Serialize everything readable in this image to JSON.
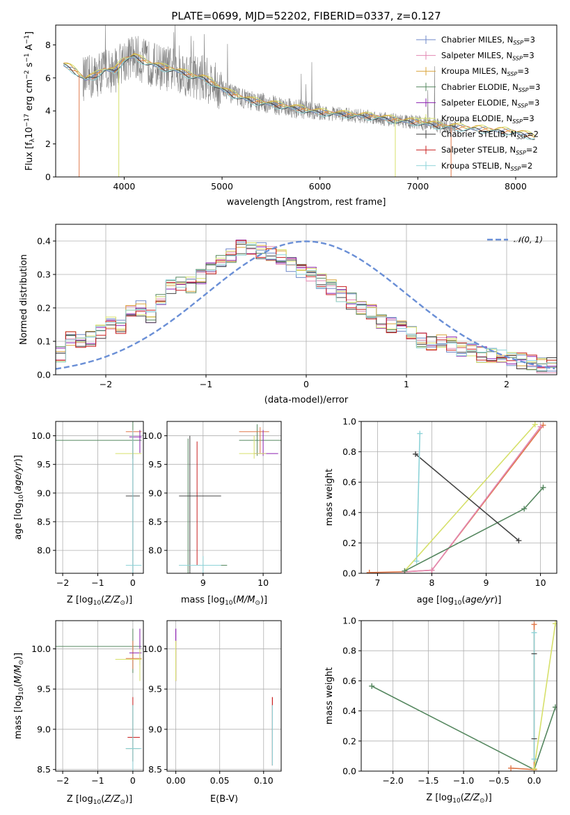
{
  "title": "PLATE=0699, MJD=52202, FIBERID=0337, z=0.127",
  "colors": {
    "chabrier_miles": "#6e87c8",
    "salpeter_miles": "#e287b2",
    "kroupa_miles": "#d9a43a",
    "chabrier_elodie": "#55875f",
    "salpeter_elodie": "#8a1fb0",
    "kroupa_elodie": "#d6e06a",
    "chabrier_stelib": "#444444",
    "salpeter_stelib": "#c81e1e",
    "kroupa_stelib": "#8ed3d8",
    "spectrum": "#808080",
    "normal": "#6a8fd6",
    "orange_fit": "#e0784a"
  },
  "chart_data": [
    {
      "id": "spectrum",
      "type": "line",
      "xlabel": "wavelength [Angstrom, rest frame]",
      "ylabel": "Flux [fλ10⁻¹⁷ erg cm⁻² s⁻¹ A⁻¹]",
      "xlim": [
        3300,
        8420
      ],
      "ylim": [
        0,
        9.2
      ],
      "xticks": [
        4000,
        5000,
        6000,
        7000,
        8000
      ],
      "yticks": [
        0,
        2,
        4,
        6,
        8
      ],
      "legend_position": "top-right",
      "legend": [
        {
          "base": "Chabrier MILES, N",
          "sub": "SSP",
          "tail": "=3",
          "color_key": "chabrier_miles"
        },
        {
          "base": "Salpeter MILES, N",
          "sub": "SSP",
          "tail": "=3",
          "color_key": "salpeter_miles"
        },
        {
          "base": "Kroupa MILES, N",
          "sub": "SSP",
          "tail": "=3",
          "color_key": "kroupa_miles"
        },
        {
          "base": "Chabrier ELODIE, N",
          "sub": "SSP",
          "tail": "=3",
          "color_key": "chabrier_elodie"
        },
        {
          "base": "Salpeter ELODIE, N",
          "sub": "SSP",
          "tail": "=3",
          "color_key": "salpeter_elodie"
        },
        {
          "base": "Kroupa ELODIE, N",
          "sub": "SSP",
          "tail": "=3",
          "color_key": "kroupa_elodie"
        },
        {
          "base": "Chabrier STELIB, N",
          "sub": "SSP",
          "tail": "=2",
          "color_key": "chabrier_stelib"
        },
        {
          "base": "Salpeter STELIB, N",
          "sub": "SSP",
          "tail": "=2",
          "color_key": "salpeter_stelib"
        },
        {
          "base": "Kroupa STELIB, N",
          "sub": "SSP",
          "tail": "=2",
          "color_key": "kroupa_stelib"
        }
      ],
      "model_continuum": {
        "x": [
          3380,
          3450,
          3520,
          3600,
          3700,
          3800,
          3900,
          4000,
          4100,
          4200,
          4300,
          4400,
          4500,
          4600,
          4700,
          4800,
          4900,
          5000,
          5100,
          5200,
          5300,
          5400,
          5500,
          5600,
          5700,
          5800,
          5900,
          6000,
          6200,
          6400,
          6600,
          6800,
          7000,
          7200,
          7400,
          7600,
          7800,
          8000,
          8200
        ],
        "y": [
          6.8,
          6.6,
          6.3,
          5.9,
          6.1,
          6.5,
          6.4,
          7.1,
          7.3,
          7.0,
          6.8,
          6.6,
          6.5,
          6.3,
          6.1,
          6.0,
          5.7,
          5.3,
          5.0,
          4.8,
          4.6,
          4.5,
          4.4,
          4.3,
          4.2,
          4.1,
          4.0,
          3.9,
          3.8,
          3.7,
          3.6,
          3.4,
          3.3,
          3.1,
          3.0,
          2.9,
          2.8,
          2.7,
          2.4
        ]
      },
      "observed_range": [
        3580,
        7410
      ]
    },
    {
      "id": "residuals",
      "type": "line",
      "xlabel": "(data-model)/error",
      "ylabel": "Normed distribution",
      "xlim": [
        -2.5,
        2.5
      ],
      "ylim": [
        0,
        0.45
      ],
      "xticks": [
        -2,
        -1,
        0,
        1,
        2
      ],
      "yticks": [
        0.0,
        0.1,
        0.2,
        0.3,
        0.4
      ],
      "legend_position": "top-right",
      "legend": [
        {
          "label": "𝒩(0, 1)",
          "color_key": "normal"
        }
      ],
      "bin_edges": [
        -2.5,
        -2.4,
        -2.3,
        -2.2,
        -2.1,
        -2.0,
        -1.9,
        -1.8,
        -1.7,
        -1.6,
        -1.5,
        -1.4,
        -1.3,
        -1.2,
        -1.1,
        -1.0,
        -0.9,
        -0.8,
        -0.7,
        -0.6,
        -0.5,
        -0.4,
        -0.3,
        -0.2,
        -0.1,
        0.0,
        0.1,
        0.2,
        0.3,
        0.4,
        0.5,
        0.6,
        0.7,
        0.8,
        0.9,
        1.0,
        1.1,
        1.2,
        1.3,
        1.4,
        1.5,
        1.6,
        1.7,
        1.8,
        1.9,
        2.0,
        2.1,
        2.2,
        2.3,
        2.4,
        2.5
      ],
      "histogram_mean": [
        0.06,
        0.11,
        0.1,
        0.11,
        0.13,
        0.15,
        0.14,
        0.19,
        0.2,
        0.18,
        0.23,
        0.26,
        0.27,
        0.27,
        0.29,
        0.31,
        0.34,
        0.36,
        0.38,
        0.38,
        0.37,
        0.36,
        0.35,
        0.33,
        0.31,
        0.3,
        0.28,
        0.26,
        0.24,
        0.22,
        0.2,
        0.19,
        0.16,
        0.15,
        0.14,
        0.13,
        0.1,
        0.09,
        0.1,
        0.09,
        0.08,
        0.07,
        0.06,
        0.06,
        0.05,
        0.05,
        0.04,
        0.04,
        0.03,
        0.03
      ]
    },
    {
      "id": "age-vs-z",
      "type": "scatter",
      "xlabel": "Z [log₁₀(Z/Z⊙)]",
      "ylabel": "age  [log₁₀(age/yr)]",
      "xlim": [
        -2.2,
        0.3
      ],
      "ylim": [
        7.6,
        10.25
      ],
      "xticks": [
        -2,
        -1,
        0
      ],
      "yticks": [
        8.0,
        8.5,
        9.0,
        9.5,
        10.0
      ]
    },
    {
      "id": "age-vs-mass",
      "type": "scatter",
      "xlabel": "mass [log₁₀(M/M⊙)]",
      "ylabel": "",
      "xlim": [
        8.4,
        10.3
      ],
      "ylim": [
        7.6,
        10.25
      ],
      "xticks": [
        9,
        10
      ],
      "yticks": [
        8.0,
        8.5,
        9.0,
        9.5,
        10.0
      ]
    },
    {
      "id": "weight-vs-age",
      "type": "line",
      "xlabel": "age  [log₁₀(age/yr)]",
      "ylabel": "mass weight",
      "xlim": [
        6.7,
        10.3
      ],
      "ylim": [
        0,
        1.0
      ],
      "xticks": [
        7,
        8,
        9,
        10
      ],
      "yticks": [
        0.0,
        0.2,
        0.4,
        0.6,
        0.8,
        1.0
      ],
      "series": [
        {
          "color_key": "orange_fit",
          "x": [
            6.85,
            7.5,
            8.0,
            10.05
          ],
          "y": [
            0.005,
            0.01,
            0.02,
            0.975
          ]
        },
        {
          "color_key": "salpeter_miles",
          "x": [
            7.5,
            8.0,
            10.0
          ],
          "y": [
            0.01,
            0.02,
            0.965
          ]
        },
        {
          "color_key": "kroupa_elodie",
          "x": [
            7.5,
            9.9
          ],
          "y": [
            0.015,
            0.98
          ]
        },
        {
          "color_key": "chabrier_elodie",
          "x": [
            7.5,
            9.7,
            10.05
          ],
          "y": [
            0.015,
            0.425,
            0.565
          ]
        },
        {
          "color_key": "chabrier_stelib",
          "x": [
            7.7,
            9.6
          ],
          "y": [
            0.785,
            0.215
          ]
        },
        {
          "color_key": "kroupa_stelib",
          "x": [
            7.72,
            7.78
          ],
          "y": [
            0.08,
            0.92
          ]
        }
      ]
    },
    {
      "id": "mass-vs-z",
      "type": "scatter",
      "xlabel": "Z [log₁₀(Z/Z⊙)]",
      "ylabel": "mass [log₁₀(M/M⊙)]",
      "xlim": [
        -2.2,
        0.3
      ],
      "ylim": [
        8.48,
        10.35
      ],
      "xticks": [
        -2,
        -1,
        0
      ],
      "yticks": [
        8.5,
        9.0,
        9.5,
        10.0
      ]
    },
    {
      "id": "mass-vs-ebv",
      "type": "scatter",
      "xlabel": "E(B-V)",
      "ylabel": "",
      "xlim": [
        -0.01,
        0.12
      ],
      "ylim": [
        8.48,
        10.35
      ],
      "xticks": [
        0.0,
        0.05,
        0.1
      ],
      "xticklabels": [
        "0.00",
        "0.05",
        "0.10"
      ],
      "yticks": [
        8.5,
        9.0,
        9.5,
        10.0
      ]
    },
    {
      "id": "weight-vs-z",
      "type": "line",
      "xlabel": "Z [log₁₀(Z/Z⊙)]",
      "ylabel": "mass weight",
      "xlim": [
        -2.45,
        0.32
      ],
      "ylim": [
        0,
        1.0
      ],
      "xticks": [
        -2.0,
        -1.5,
        -1.0,
        -0.5,
        0.0
      ],
      "xticklabels": [
        "−2.0",
        "−1.5",
        "−1.0",
        "−0.5",
        "0.0"
      ],
      "yticks": [
        0.0,
        0.2,
        0.4,
        0.6,
        0.8,
        1.0
      ],
      "series": [
        {
          "color_key": "chabrier_elodie",
          "x": [
            -2.3,
            0.0,
            0.3
          ],
          "y": [
            0.565,
            0.01,
            0.425
          ]
        },
        {
          "color_key": "orange_fit",
          "x": [
            -0.33,
            0.0,
            0.0
          ],
          "y": [
            0.02,
            0.01,
            0.975
          ]
        },
        {
          "color_key": "kroupa_elodie",
          "x": [
            0.0,
            0.3
          ],
          "y": [
            0.015,
            0.98
          ]
        },
        {
          "color_key": "kroupa_stelib",
          "x": [
            0.0,
            0.0
          ],
          "y": [
            0.08,
            0.92
          ]
        }
      ]
    }
  ]
}
